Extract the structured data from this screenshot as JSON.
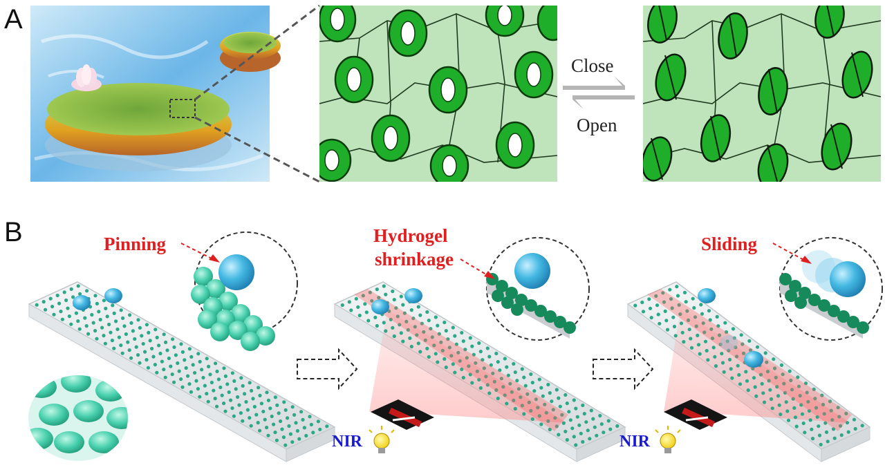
{
  "panel_a": {
    "letter": "A",
    "close_label": "Close",
    "open_label": "Open"
  },
  "panel_b": {
    "letter": "B",
    "step1_label": "Pinning",
    "step2_label_line1": "Hydrogel",
    "step2_label_line2": "shrinkage",
    "step3_label": "Sliding",
    "nir_label": "NIR"
  },
  "colors": {
    "accent_red": "#e02020",
    "nir_blue": "#1a1ad6",
    "stomata_green": "#1fae2a",
    "leaf_bg": "#bfe3bb",
    "droplet_blue": "#3fb4dd",
    "sphere_teal": "#2fbf94"
  }
}
